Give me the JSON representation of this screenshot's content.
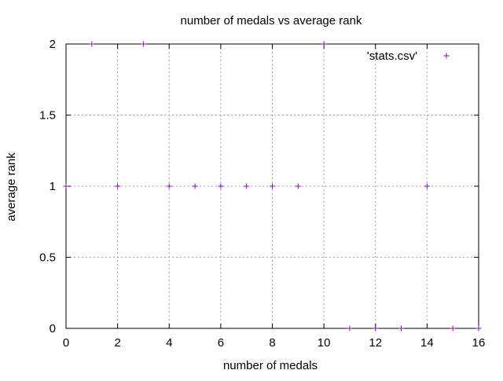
{
  "chart_data": {
    "type": "scatter",
    "title": "number of medals vs average rank",
    "xlabel": "number of medals",
    "ylabel": "average rank",
    "xlim": [
      0,
      16
    ],
    "ylim": [
      0,
      2
    ],
    "x_ticks": [
      0,
      2,
      4,
      6,
      8,
      10,
      12,
      14,
      16
    ],
    "y_ticks": [
      0,
      0.5,
      1,
      1.5,
      2
    ],
    "x_tick_labels": [
      "0",
      "2",
      "4",
      "6",
      "8",
      "10",
      "12",
      "14",
      "16"
    ],
    "y_tick_labels": [
      "0",
      "0.5",
      "1",
      "1.5",
      "2"
    ],
    "grid": true,
    "legend_position": "top-right",
    "series": [
      {
        "name": "'stats.csv'",
        "color": "#9400d3",
        "marker": "plus",
        "x": [
          0,
          1,
          2,
          3,
          4,
          5,
          6,
          7,
          8,
          9,
          10,
          11,
          12,
          13,
          14,
          15,
          16
        ],
        "y": [
          1,
          2,
          1,
          2,
          1,
          1,
          1,
          1,
          1,
          1,
          2,
          0,
          0,
          0,
          1,
          0,
          0
        ]
      }
    ]
  }
}
